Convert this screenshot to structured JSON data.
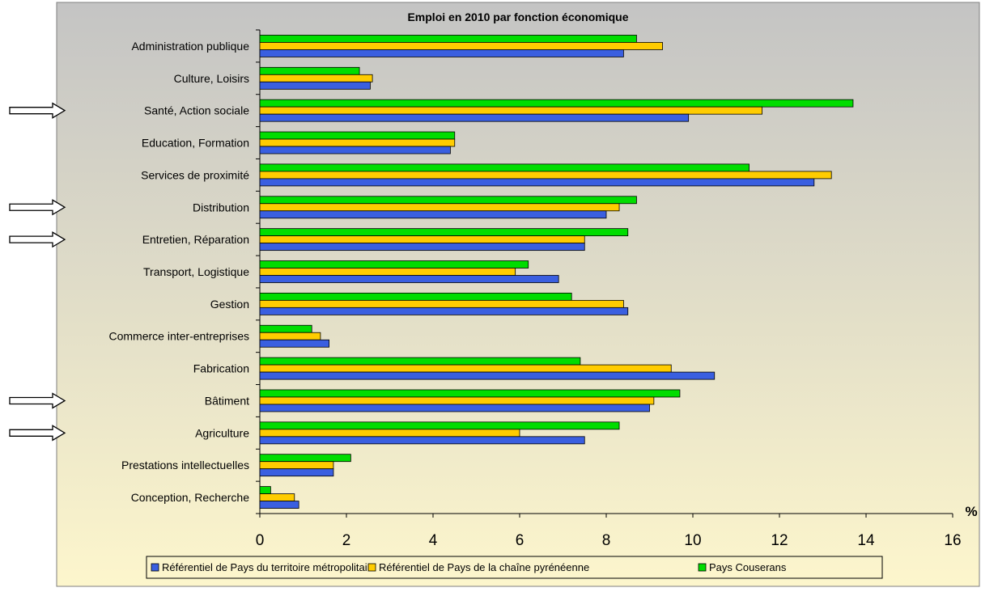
{
  "chart_data": {
    "type": "bar",
    "orientation": "horizontal",
    "title": "Emploi en 2010 par fonction économique",
    "xlabel": "%",
    "ylabel": "",
    "xlim": [
      0,
      16
    ],
    "x_ticks": [
      "0",
      "2",
      "4",
      "6",
      "8",
      "10",
      "12",
      "14",
      "16"
    ],
    "grid": false,
    "legend_position": "bottom",
    "categories": [
      "Administration publique",
      "Culture, Loisirs",
      "Santé, Action sociale",
      "Education, Formation",
      "Services de proximité",
      "Distribution",
      "Entretien, Réparation",
      "Transport, Logistique",
      "Gestion",
      "Commerce inter-entreprises",
      "Fabrication",
      "Bâtiment",
      "Agriculture",
      "Prestations intellectuelles",
      "Conception, Recherche"
    ],
    "series": [
      {
        "name": "Référentiel de Pays du territoire métropolitain",
        "color": "#3a5fe0",
        "values": [
          8.4,
          2.55,
          9.9,
          4.4,
          12.8,
          8.0,
          7.5,
          6.9,
          8.5,
          1.6,
          10.5,
          9.0,
          7.5,
          1.7,
          0.9
        ]
      },
      {
        "name": "Référentiel de Pays de la chaîne pyrénéenne",
        "color": "#ffcc00",
        "values": [
          9.3,
          2.6,
          11.6,
          4.5,
          13.2,
          8.3,
          7.5,
          5.9,
          8.4,
          1.4,
          9.5,
          9.1,
          6.0,
          1.7,
          0.8
        ]
      },
      {
        "name": "Pays Couserans",
        "color": "#00dd00",
        "values": [
          8.7,
          2.3,
          13.7,
          4.5,
          11.3,
          8.7,
          8.5,
          6.2,
          7.2,
          1.2,
          7.4,
          9.7,
          8.3,
          2.1,
          0.25
        ]
      }
    ],
    "highlighted_categories": [
      "Santé, Action sociale",
      "Distribution",
      "Entretien, Réparation",
      "Bâtiment",
      "Agriculture"
    ],
    "colors": {
      "plot_background_top": "#c4c4c4",
      "plot_background_bottom": "#fdf6cc",
      "bar_outline": "#000000"
    }
  }
}
